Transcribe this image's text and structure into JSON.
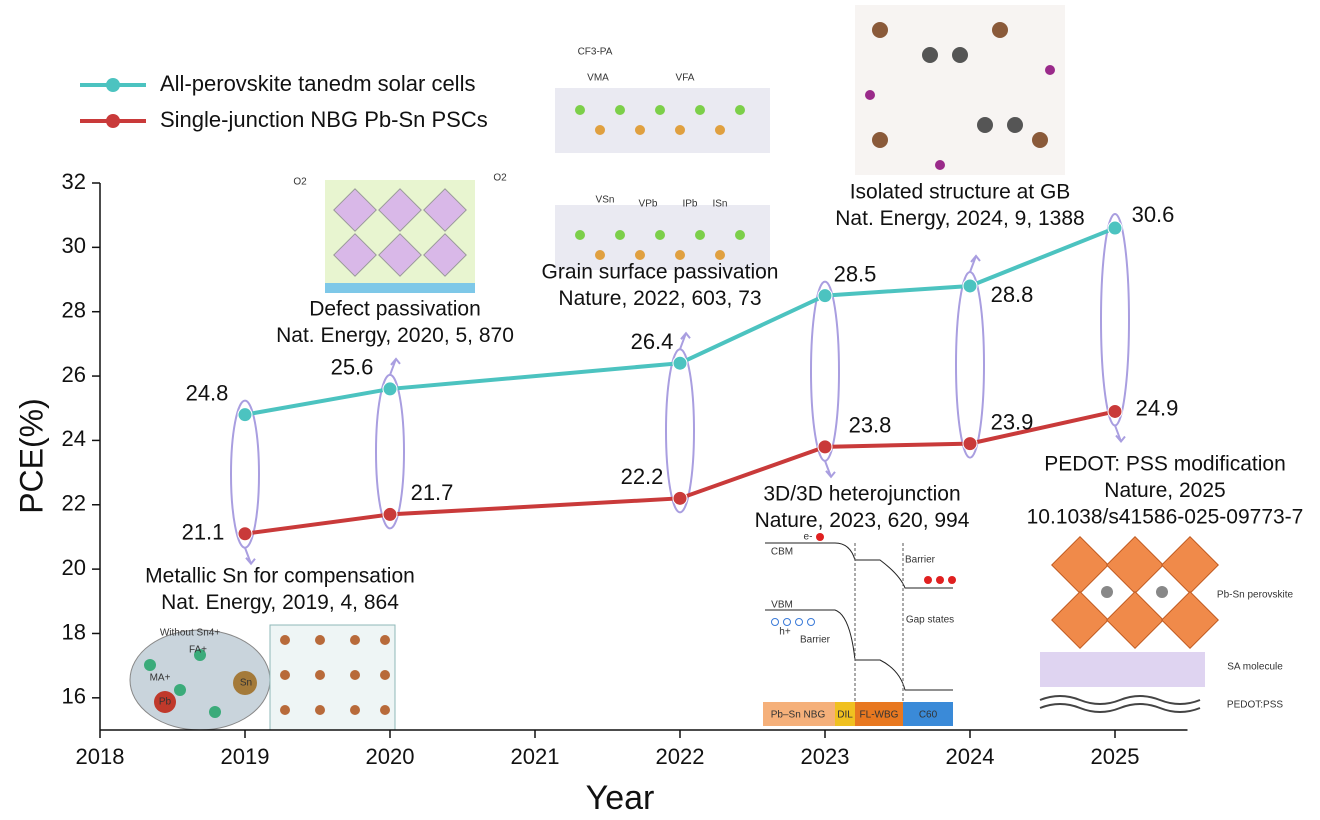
{
  "chart_data": {
    "type": "line",
    "x_label": "Year",
    "y_label": "PCE(%)",
    "xlim": [
      2018,
      2025.5
    ],
    "xticks": [
      2018,
      2019,
      2020,
      2021,
      2022,
      2023,
      2024,
      2025
    ],
    "ylim": [
      15,
      32
    ],
    "yticks": [
      16,
      18,
      20,
      22,
      24,
      26,
      28,
      30,
      32
    ],
    "legend": "top-left",
    "x": [
      2019,
      2020,
      2022,
      2023,
      2024,
      2025
    ],
    "series": [
      {
        "name": "All-perovskite tanedm solar cells",
        "color": "#4cc3c0",
        "values": [
          24.8,
          25.6,
          26.4,
          28.5,
          28.8,
          30.6
        ]
      },
      {
        "name": "Single-junction NBG Pb-Sn PSCs",
        "color": "#c93a3a",
        "values": [
          21.1,
          21.7,
          22.2,
          23.8,
          23.9,
          24.9
        ]
      }
    ],
    "annotations": [
      {
        "lines": [
          "Metallic Sn for compensation",
          "Nat. Energy, 2019, 4, 864"
        ]
      },
      {
        "lines": [
          "Defect passivation",
          "Nat. Energy, 2020, 5, 870"
        ]
      },
      {
        "lines": [
          "Grain surface passivation",
          "Nature, 2022, 603, 73"
        ]
      },
      {
        "lines": [
          "3D/3D heterojunction",
          "Nature, 2023, 620, 994"
        ]
      },
      {
        "lines": [
          "Isolated structure at GB",
          "Nat. Energy, 2024, 9, 1388"
        ]
      },
      {
        "lines": [
          "PEDOT: PSS modification",
          "Nature, 2025",
          "10.1038/s41586-025-09773-7"
        ]
      }
    ],
    "figure_labels": [
      "Without Sn4+",
      "FA+",
      "MA+",
      "Sn",
      "Pb",
      "O2",
      "O2",
      "CF3-PA",
      "VMA",
      "VFA",
      "VSn",
      "VPb",
      "IPb",
      "ISn",
      "CBM",
      "VBM",
      "e-",
      "h+",
      "Barrier",
      "Barrier",
      "Gap states",
      "Pb–Sn NBG",
      "DIL",
      "FL-WBG",
      "C60",
      "Pb-Sn perovskite",
      "SA molecule",
      "PEDOT:PSS"
    ]
  }
}
